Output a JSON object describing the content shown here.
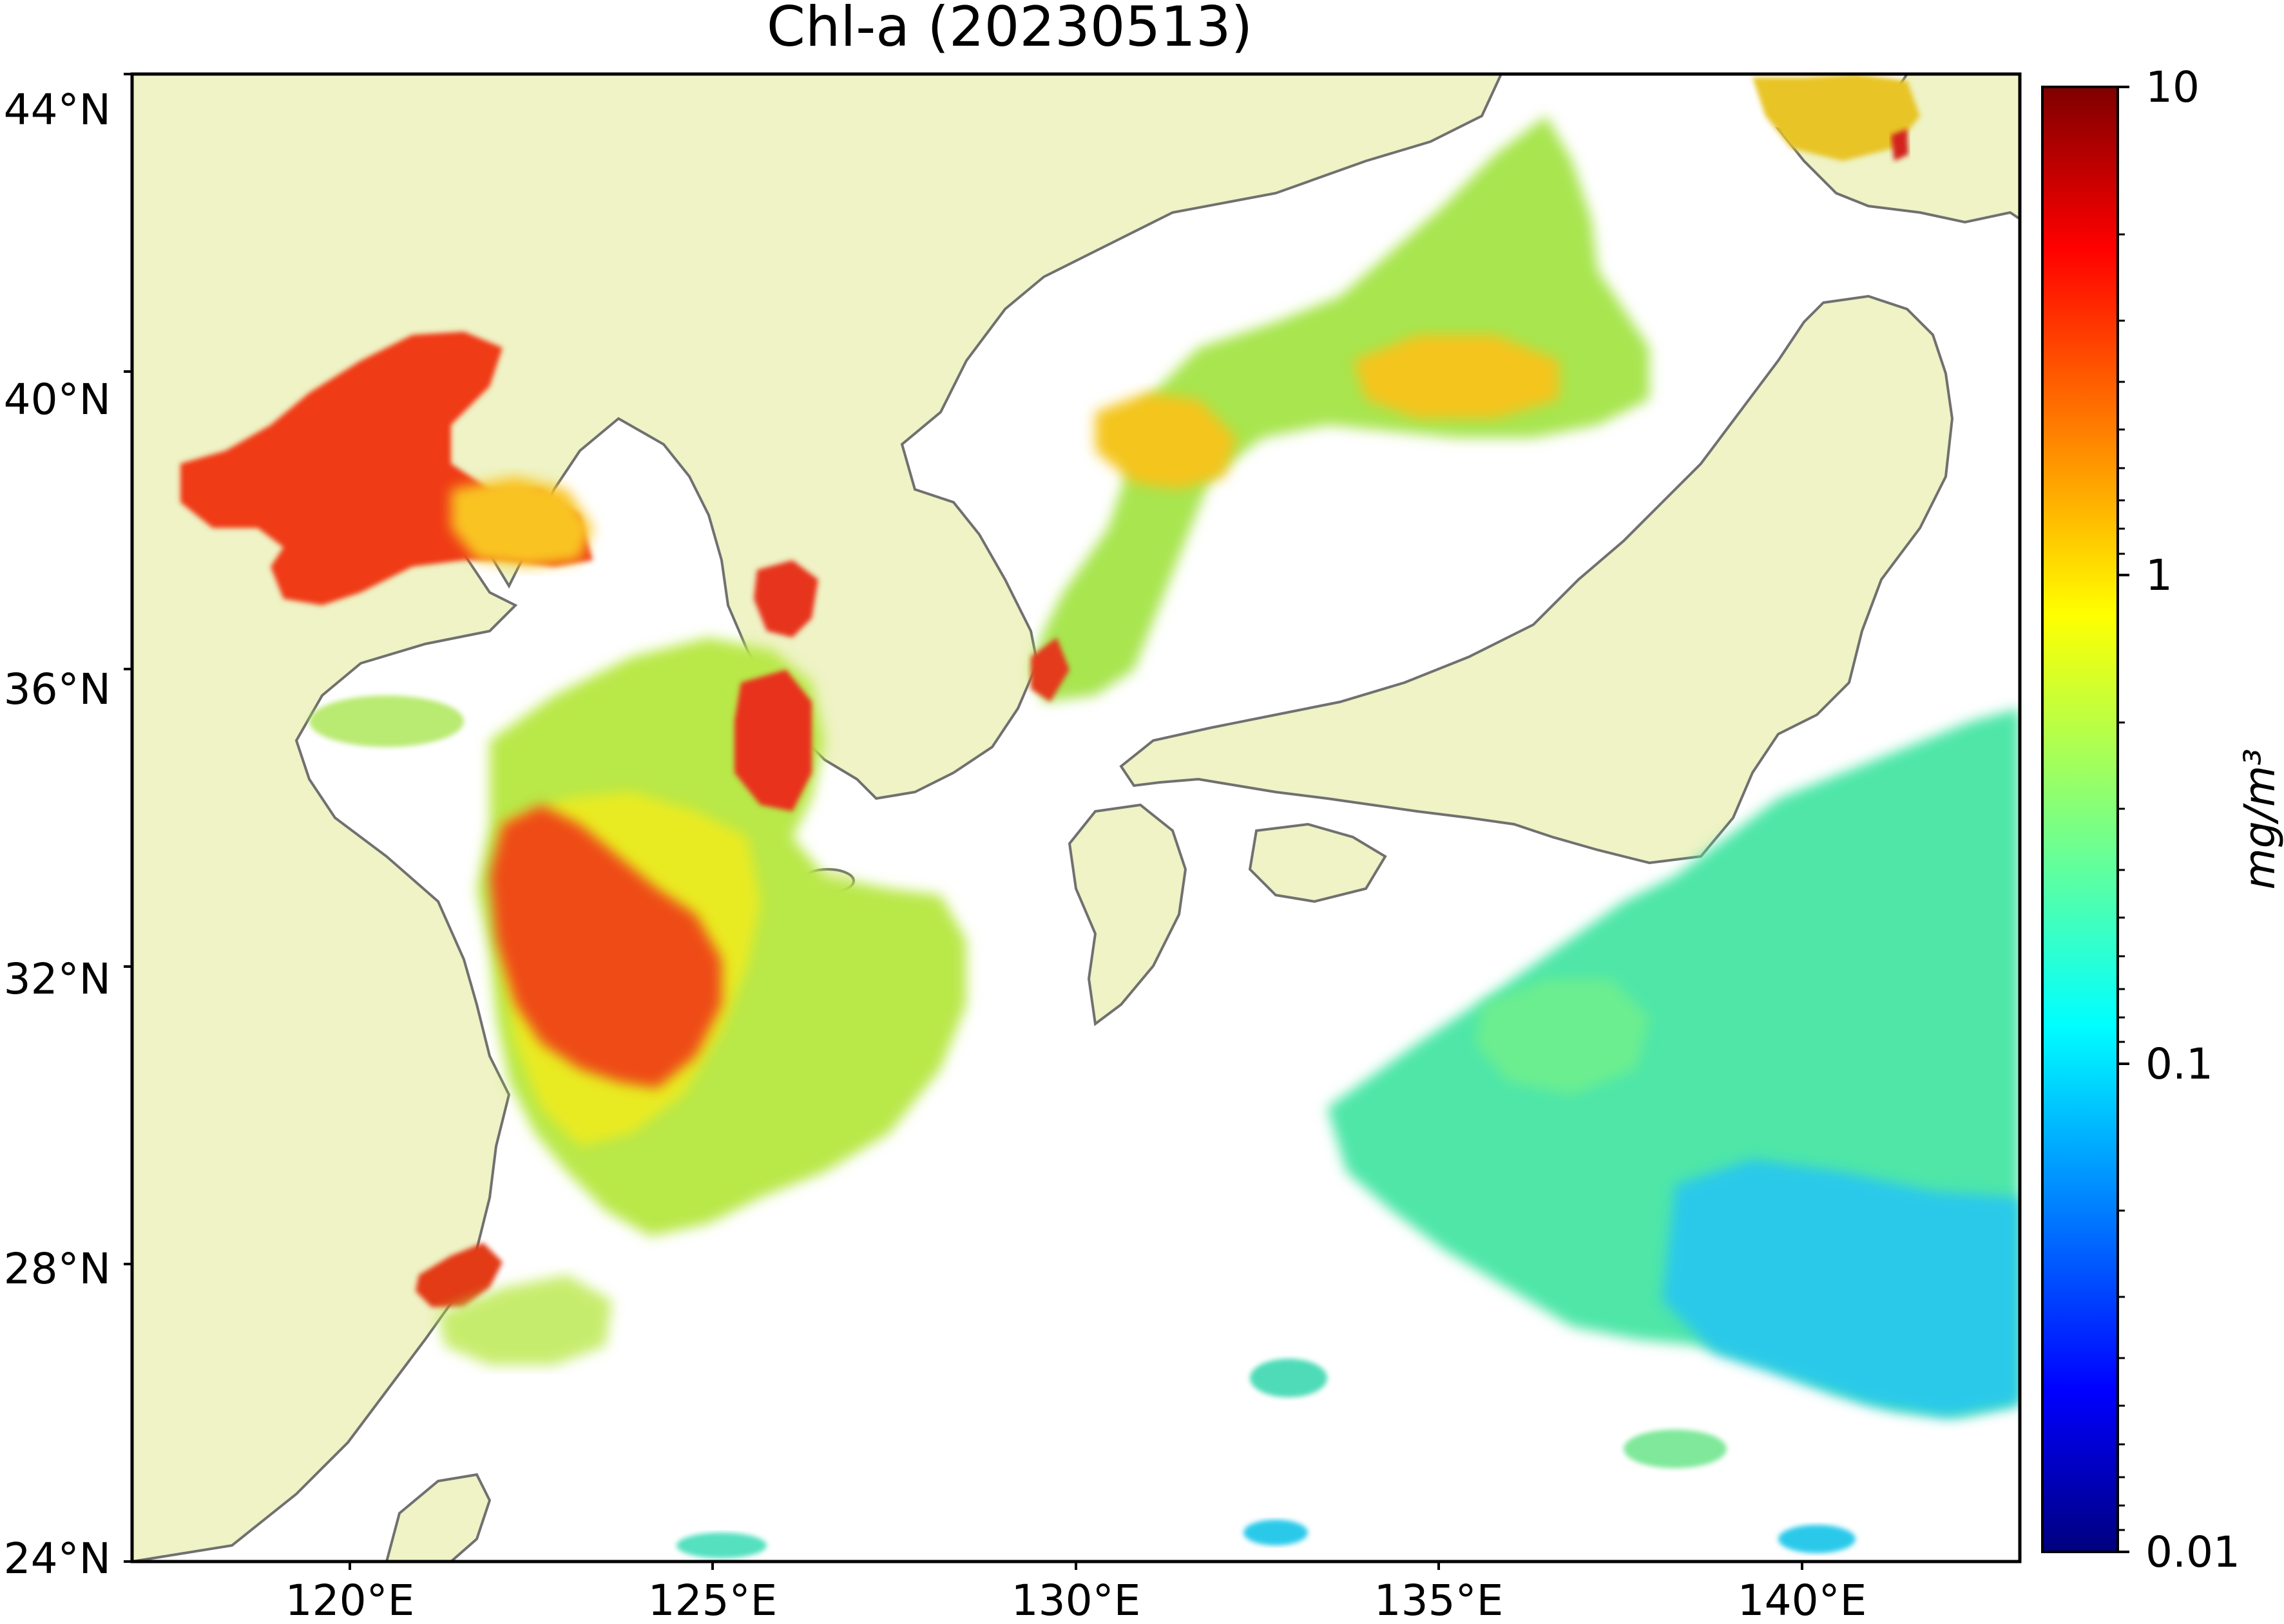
{
  "title": "Chl-a (20230513)",
  "map": {
    "lat_range": [
      24,
      44
    ],
    "lon_range": [
      117,
      143
    ],
    "lat_ticks": [
      "44°N",
      "40°N",
      "36°N",
      "32°N",
      "28°N",
      "24°N"
    ],
    "lon_ticks": [
      "120°E",
      "125°E",
      "130°E",
      "135°E",
      "140°E"
    ],
    "colors": {
      "land": "#eff3c5",
      "coastline": "#707070",
      "no_data": "#ffffff"
    }
  },
  "colorbar": {
    "label": "mg/m³",
    "scale": "log",
    "range": [
      0.01,
      10
    ],
    "tick_labels": [
      "10",
      "1",
      "0.1",
      "0.01"
    ],
    "colormap": "jet"
  }
}
